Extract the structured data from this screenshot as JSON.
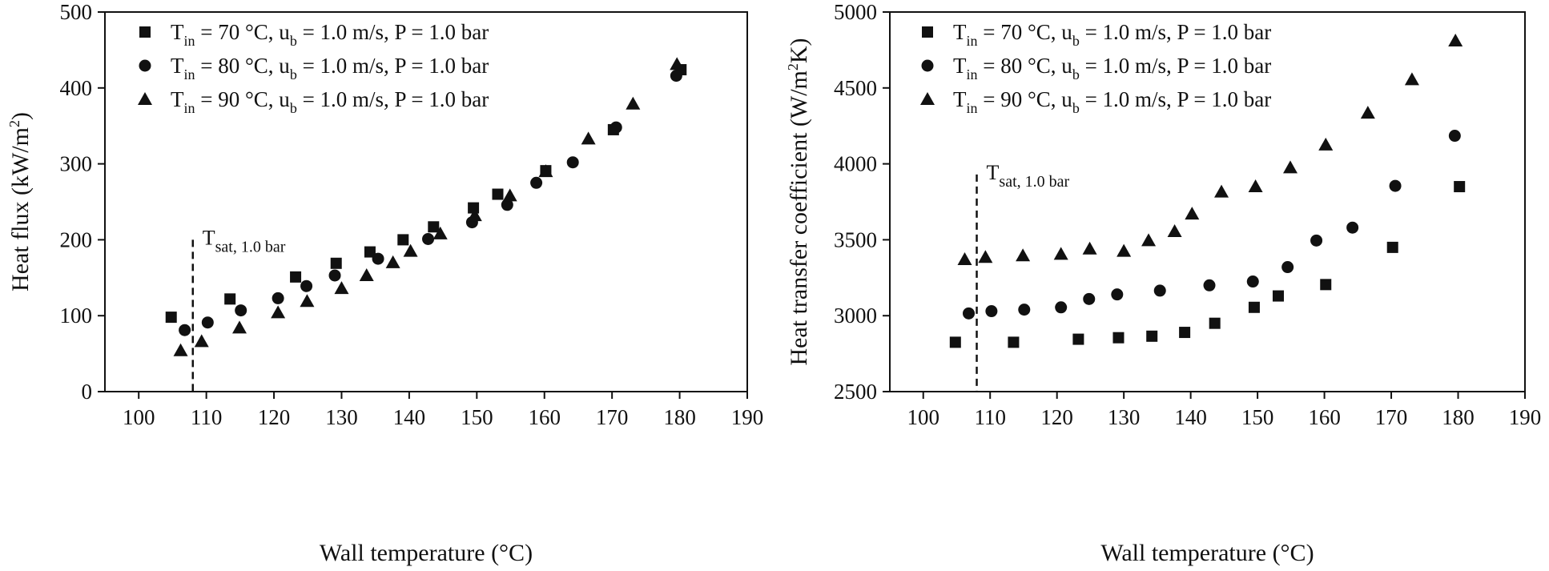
{
  "chart_data": [
    {
      "type": "scatter",
      "xlabel": "Wall temperature (°C)",
      "ylabel": "Heat flux (kW/m²)",
      "ylabel_parts": {
        "main": "Heat flux (kW/m",
        "sup": "2",
        "end": ")"
      },
      "xlim": [
        95,
        190
      ],
      "ylim": [
        0,
        500
      ],
      "xticks": [
        100,
        110,
        120,
        130,
        140,
        150,
        160,
        170,
        180,
        190
      ],
      "yticks": [
        0,
        100,
        200,
        300,
        400,
        500
      ],
      "legend_position": "top-left",
      "annotation": {
        "text_main": "T",
        "text_sub": "sat, 1.0 bar",
        "x": 108,
        "y_from": 0,
        "y_to": 200
      },
      "series": [
        {
          "name": "T_in = 70 °C, u_b = 1.0 m/s, P = 1.0 bar",
          "legend": {
            "t": "T",
            "t_sub": "in",
            "mid": " = 70 °C, u",
            "u_sub": "b",
            "end": " = 1.0 m/s, P = 1.0 bar"
          },
          "marker": "square",
          "x": [
            104.8,
            113.5,
            123.2,
            129.2,
            134.2,
            139.1,
            143.6,
            149.5,
            153.1,
            160.2,
            170.2,
            180.2
          ],
          "y": [
            98,
            122,
            151,
            169,
            184,
            200,
            217,
            242,
            260,
            291,
            345,
            424
          ]
        },
        {
          "name": "T_in = 80 °C, u_b = 1.0 m/s, P = 1.0 bar",
          "legend": {
            "t": "T",
            "t_sub": "in",
            "mid": " = 80 °C, u",
            "u_sub": "b",
            "end": " = 1.0 m/s, P = 1.0 bar"
          },
          "marker": "circle",
          "x": [
            106.8,
            110.2,
            115.1,
            120.6,
            124.8,
            129.0,
            135.4,
            142.8,
            149.3,
            154.5,
            158.8,
            164.2,
            170.6,
            179.5
          ],
          "y": [
            81,
            91,
            107,
            123,
            139,
            153,
            175,
            201,
            223,
            246,
            275,
            302,
            348,
            416
          ]
        },
        {
          "name": "T_in = 90 °C, u_b = 1.0 m/s, P = 1.0 bar",
          "legend": {
            "t": "T",
            "t_sub": "in",
            "mid": " = 90 °C, u",
            "u_sub": "b",
            "end": " = 1.0 m/s, P = 1.0 bar"
          },
          "marker": "triangle",
          "x": [
            106.2,
            109.3,
            114.9,
            120.6,
            124.9,
            130.0,
            133.7,
            137.6,
            140.2,
            144.6,
            149.7,
            154.9,
            160.2,
            166.5,
            173.1,
            179.6
          ],
          "y": [
            54,
            66,
            84,
            104,
            119,
            136,
            153,
            170,
            185,
            208,
            232,
            258,
            290,
            333,
            379,
            431
          ]
        }
      ]
    },
    {
      "type": "scatter",
      "xlabel": "Wall temperature (°C)",
      "ylabel": "Heat transfer coefficient (W/m²K)",
      "ylabel_parts": {
        "main": "Heat transfer coefficient (W/m",
        "sup": "2",
        "end": "K)"
      },
      "xlim": [
        95,
        190
      ],
      "ylim": [
        2500,
        5000
      ],
      "xticks": [
        100,
        110,
        120,
        130,
        140,
        150,
        160,
        170,
        180,
        190
      ],
      "yticks": [
        2500,
        3000,
        3500,
        4000,
        4500,
        5000
      ],
      "legend_position": "top-left",
      "annotation": {
        "text_main": "T",
        "text_sub": "sat, 1.0 bar",
        "x": 108,
        "y_from": 2500,
        "y_to": 3930
      },
      "series": [
        {
          "name": "T_in = 70 °C, u_b = 1.0 m/s, P = 1.0 bar",
          "legend": {
            "t": "T",
            "t_sub": "in",
            "mid": " = 70 °C, u",
            "u_sub": "b",
            "end": " = 1.0 m/s, P = 1.0 bar"
          },
          "marker": "square",
          "x": [
            104.8,
            113.5,
            123.2,
            129.2,
            134.2,
            139.1,
            143.6,
            149.5,
            153.1,
            160.2,
            170.2,
            180.2
          ],
          "y": [
            2825,
            2825,
            2845,
            2855,
            2865,
            2890,
            2950,
            3055,
            3130,
            3205,
            3450,
            3850
          ]
        },
        {
          "name": "T_in = 80 °C, u_b = 1.0 m/s, P = 1.0 bar",
          "legend": {
            "t": "T",
            "t_sub": "in",
            "mid": " = 80 °C, u",
            "u_sub": "b",
            "end": " = 1.0 m/s, P = 1.0 bar"
          },
          "marker": "circle",
          "x": [
            106.8,
            110.2,
            115.1,
            120.6,
            124.8,
            129.0,
            135.4,
            142.8,
            149.3,
            154.5,
            158.8,
            164.2,
            170.6,
            179.5
          ],
          "y": [
            3015,
            3030,
            3040,
            3055,
            3110,
            3140,
            3165,
            3200,
            3225,
            3320,
            3495,
            3580,
            3855,
            4185
          ]
        },
        {
          "name": "T_in = 90 °C, u_b = 1.0 m/s, P = 1.0 bar",
          "legend": {
            "t": "T",
            "t_sub": "in",
            "mid": " = 90 °C, u",
            "u_sub": "b",
            "end": " = 1.0 m/s, P = 1.0 bar"
          },
          "marker": "triangle",
          "x": [
            106.2,
            109.3,
            114.9,
            120.6,
            124.9,
            130.0,
            133.7,
            137.6,
            140.2,
            144.6,
            149.7,
            154.9,
            160.2,
            166.5,
            173.1,
            179.6
          ],
          "y": [
            3370,
            3385,
            3395,
            3405,
            3440,
            3425,
            3495,
            3555,
            3670,
            3815,
            3850,
            3975,
            4125,
            4335,
            4555,
            4810
          ]
        }
      ]
    }
  ]
}
